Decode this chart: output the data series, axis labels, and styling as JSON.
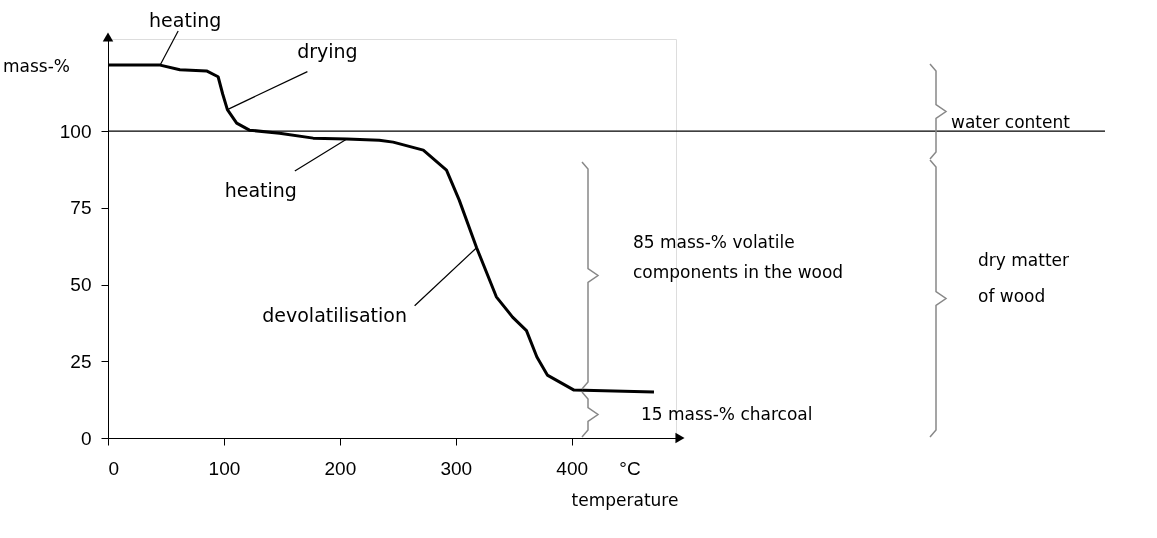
{
  "chart_data": {
    "type": "line",
    "xlabel": "temperature",
    "ylabel": "mass-%",
    "x": [
      0,
      45,
      62,
      85,
      95,
      99,
      103,
      111,
      122,
      148,
      177,
      206,
      234,
      246,
      272,
      292,
      303,
      318,
      335,
      349,
      361,
      370,
      379,
      402,
      471
    ],
    "series": [
      {
        "color": "#000000",
        "values": [
          121.5,
          121.5,
          120,
          119.6,
          117.7,
          112,
          107,
          102.6,
          100.3,
          99.3,
          97.7,
          97.4,
          97,
          96.4,
          93.8,
          87.3,
          77.5,
          62,
          46,
          39.4,
          35,
          26.4,
          20.5,
          15.6,
          15
        ]
      }
    ],
    "xlim": [
      0,
      490
    ],
    "ylim": [
      0,
      130
    ],
    "xticks": [
      0,
      100,
      200,
      300,
      400
    ],
    "yticks": [
      0,
      25,
      50,
      75,
      100
    ],
    "grid": false,
    "ref_lines": [
      {
        "axis": "y",
        "value": 100,
        "color": "#000000"
      }
    ],
    "annotations": [
      {
        "text": "heating",
        "x": 45,
        "y": 121.5
      },
      {
        "text": "drying",
        "x": 103,
        "y": 107
      },
      {
        "text": "heating",
        "x": 206,
        "y": 97.4
      },
      {
        "text": "devolatilisation",
        "x": 318,
        "y": 62
      },
      "°C",
      "water content",
      "85 mass-% volatile\ncomponents in the wood",
      "dry matter\nof wood",
      "15 mass-% charcoal"
    ]
  }
}
